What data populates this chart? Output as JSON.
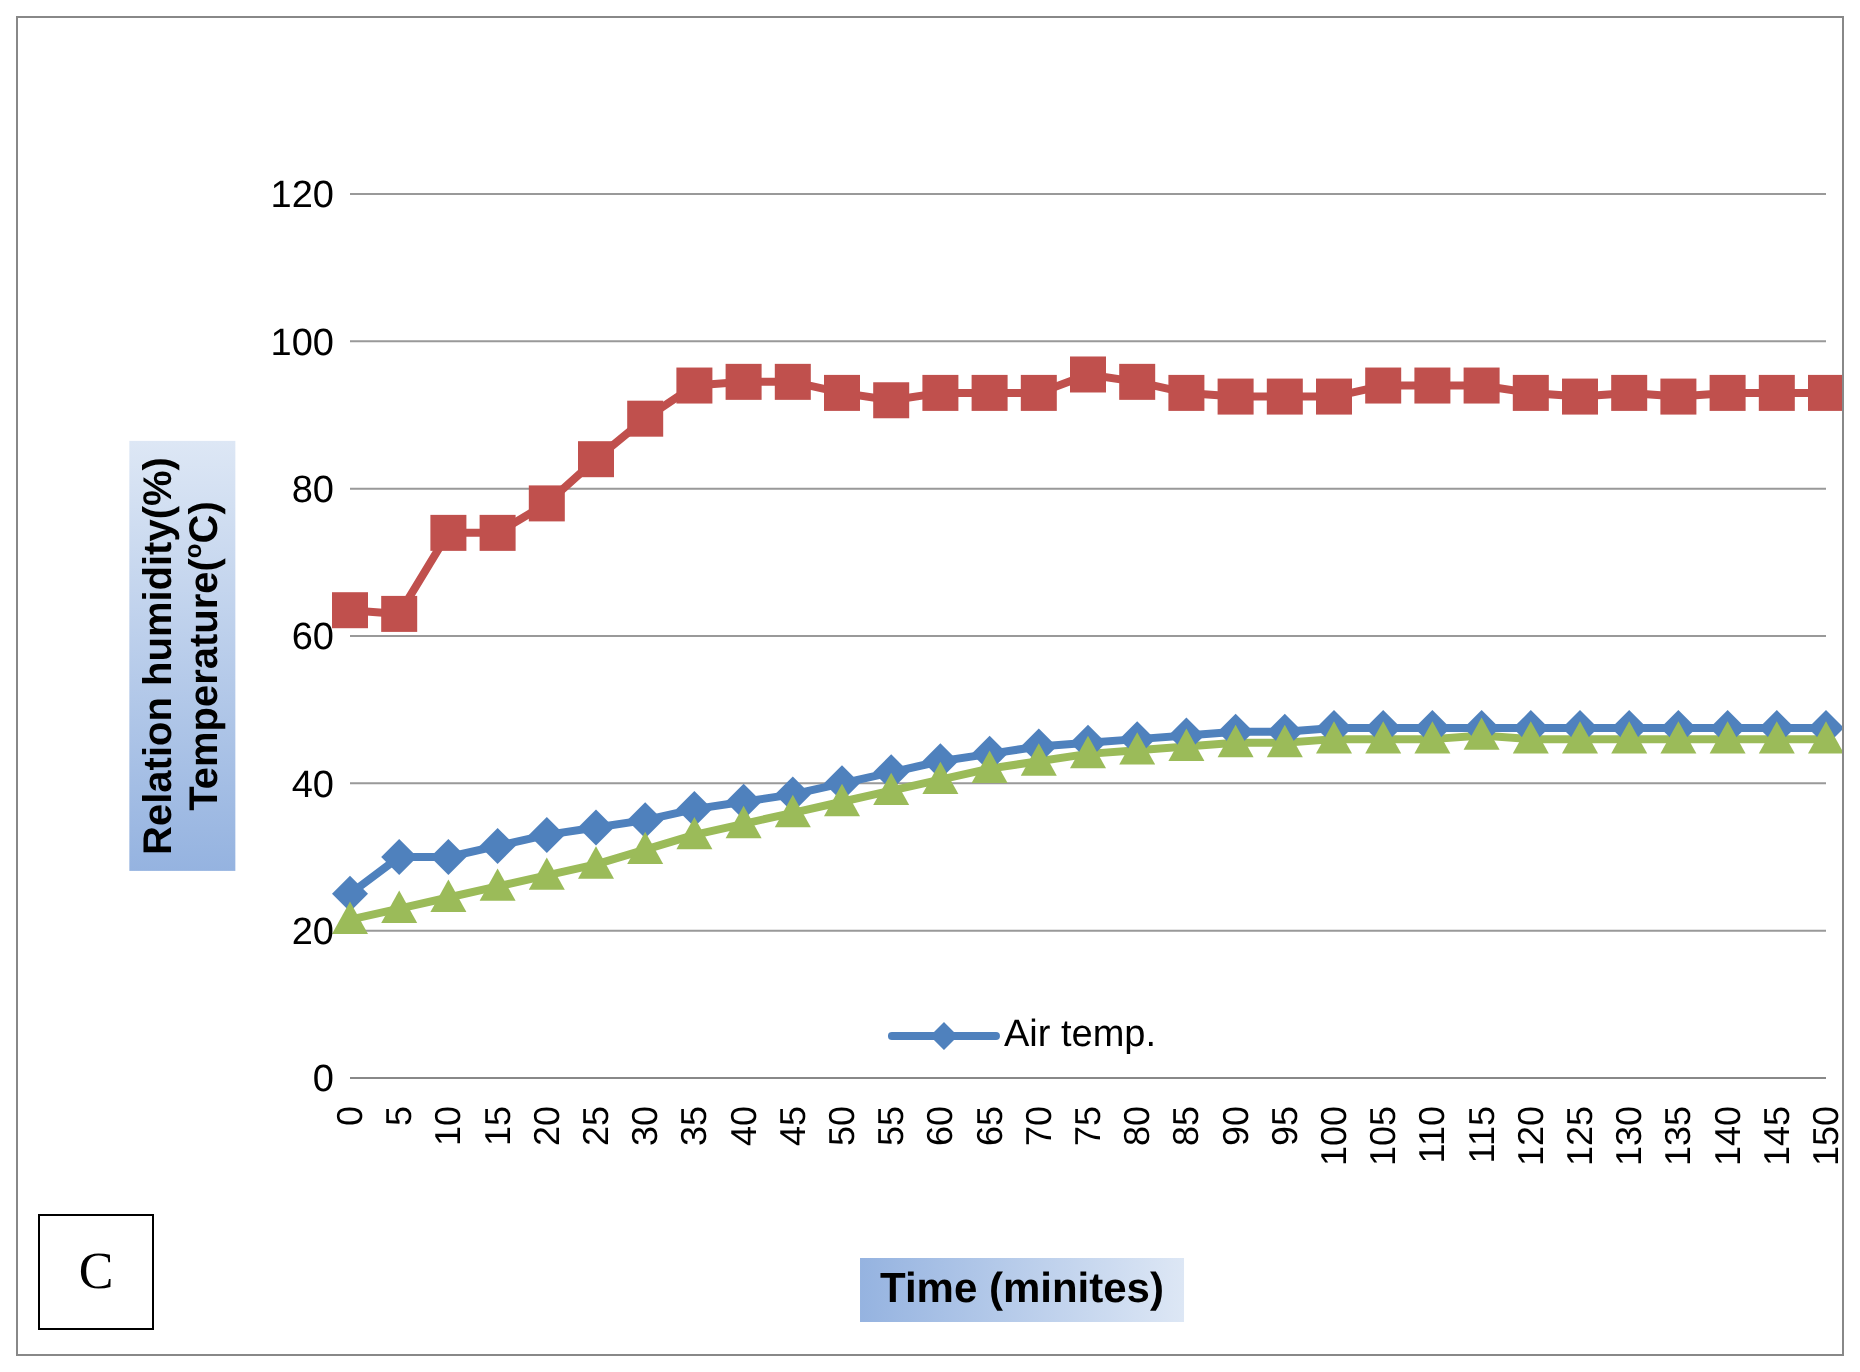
{
  "chart_data": {
    "type": "line",
    "xlabel": "Time (minites)",
    "ylabel": "Relation humidity(%)\nTemperature($^{o}$C)",
    "annotations": [
      "C"
    ],
    "categories": [
      "0",
      "5",
      "10",
      "15",
      "20",
      "25",
      "30",
      "35",
      "40",
      "45",
      "50",
      "55",
      "60",
      "65",
      "70",
      "75",
      "80",
      "85",
      "90",
      "95",
      "100",
      "105",
      "110",
      "115",
      "120",
      "125",
      "130",
      "135",
      "140",
      "145",
      "150"
    ],
    "ylim": [
      0,
      120
    ],
    "yticks": [
      0,
      20,
      40,
      60,
      80,
      100,
      120
    ],
    "grid": "y",
    "legend": "bottom",
    "series": [
      {
        "color": "#c0504d",
        "marker": "square",
        "values": [
          63.5,
          63,
          74,
          74,
          78,
          84,
          89.5,
          94,
          94.5,
          94.5,
          93,
          92,
          93,
          93,
          93,
          95.5,
          94.5,
          93,
          92.5,
          92.5,
          92.5,
          94,
          94,
          94,
          93,
          92.5,
          93,
          92.5,
          93,
          93,
          93
        ]
      },
      {
        "name": "Air temp.",
        "color": "#4f81bd",
        "marker": "diamond",
        "values": [
          25,
          30,
          30,
          31.5,
          33,
          34,
          35,
          36.5,
          37.5,
          38.5,
          40,
          41.5,
          43,
          44,
          45,
          45.5,
          46,
          46.5,
          47,
          47,
          47.5,
          47.5,
          47.5,
          47.5,
          47.5,
          47.5,
          47.5,
          47.5,
          47.5,
          47.5,
          47.5
        ]
      },
      {
        "color": "#9bbb59",
        "marker": "triangle",
        "values": [
          21.5,
          23,
          24.5,
          26,
          27.5,
          29,
          31,
          33,
          34.5,
          36,
          37.5,
          39,
          40.5,
          42,
          43,
          44,
          44.5,
          45,
          45.5,
          45.5,
          46,
          46,
          46,
          46.5,
          46,
          46,
          46,
          46,
          46,
          46,
          46
        ]
      }
    ]
  }
}
